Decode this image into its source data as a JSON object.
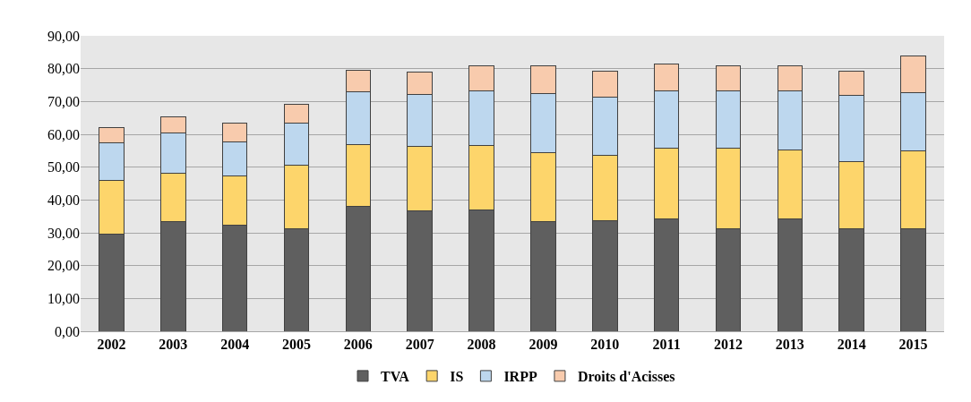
{
  "chart_data": {
    "type": "bar",
    "stacked": true,
    "categories": [
      "2002",
      "2003",
      "2004",
      "2005",
      "2006",
      "2007",
      "2008",
      "2009",
      "2010",
      "2011",
      "2012",
      "2013",
      "2014",
      "2015"
    ],
    "series": [
      {
        "name": "TVA",
        "color": "#5f5f5f",
        "values": [
          29.5,
          33.3,
          32.2,
          31.2,
          38,
          36.7,
          37,
          33.3,
          33.6,
          34.3,
          31.3,
          34.3,
          31.3,
          31.3
        ]
      },
      {
        "name": "IS",
        "color": "#fdd56b",
        "values": [
          16.5,
          14.9,
          15,
          19.3,
          19,
          19.6,
          19.6,
          21,
          20,
          21.6,
          24.6,
          21,
          20.3,
          23.7
        ]
      },
      {
        "name": "IRPP",
        "color": "#bdd7ee",
        "values": [
          11.3,
          12.1,
          10.4,
          12.8,
          15.9,
          15.9,
          16.6,
          18.2,
          17.7,
          17.4,
          17.4,
          18,
          20.4,
          17.8
        ]
      },
      {
        "name": "Droits d'Acisses",
        "color": "#f8cbad",
        "values": [
          4.7,
          5.1,
          5.8,
          5.8,
          6.7,
          6.7,
          7.7,
          8.4,
          8,
          8,
          7.7,
          7.7,
          7.3,
          11.2
        ]
      }
    ],
    "ylim": [
      0,
      90
    ],
    "yticks": [
      {
        "value": 0,
        "label": "0,00"
      },
      {
        "value": 10,
        "label": "10,00"
      },
      {
        "value": 20,
        "label": "20,00"
      },
      {
        "value": 30,
        "label": "30,00"
      },
      {
        "value": 40,
        "label": "40,00"
      },
      {
        "value": 50,
        "label": "50,00"
      },
      {
        "value": 60,
        "label": "60,00"
      },
      {
        "value": 70,
        "label": "70,00"
      },
      {
        "value": 80,
        "label": "80,00"
      },
      {
        "value": 90,
        "label": "90,00"
      }
    ],
    "grid": "y",
    "legend": "bottom"
  }
}
